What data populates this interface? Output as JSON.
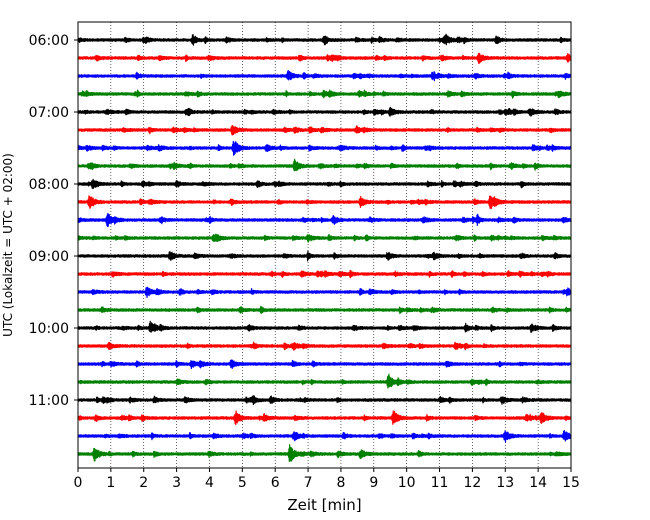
{
  "chart_data": {
    "type": "line",
    "title": "",
    "xlabel": "Zeit  [min]",
    "ylabel": "UTC (Lokalzeit = UTC + 02:00)",
    "xlim": [
      0,
      15
    ],
    "x_ticks": [
      "0",
      "1",
      "2",
      "3",
      "4",
      "5",
      "6",
      "7",
      "8",
      "9",
      "10",
      "11",
      "12",
      "13",
      "14",
      "15"
    ],
    "y_ticks": [
      "06:00",
      "07:00",
      "08:00",
      "09:00",
      "10:00",
      "11:00"
    ],
    "trace_count": 24,
    "trace_interval_minutes": 15,
    "first_trace": "06:00",
    "trace_colors": [
      "#000000",
      "#ff0000",
      "#0000ff",
      "#008000"
    ],
    "grid": "vertical dotted at each minute",
    "events": [
      {
        "trace": 0,
        "x": 3.5,
        "amp": 0.5
      },
      {
        "trace": 0,
        "x": 11.2,
        "amp": 0.45
      },
      {
        "trace": 1,
        "x": 12.2,
        "amp": 0.5
      },
      {
        "trace": 1,
        "x": 14.9,
        "amp": 0.4
      },
      {
        "trace": 2,
        "x": 6.4,
        "amp": 0.5
      },
      {
        "trace": 4,
        "x": 9.5,
        "amp": 0.4
      },
      {
        "trace": 5,
        "x": 4.7,
        "amp": 0.5
      },
      {
        "trace": 6,
        "x": 4.75,
        "amp": 0.85
      },
      {
        "trace": 7,
        "x": 6.6,
        "amp": 0.65
      },
      {
        "trace": 8,
        "x": 0.45,
        "amp": 0.5
      },
      {
        "trace": 9,
        "x": 0.35,
        "amp": 0.75
      },
      {
        "trace": 9,
        "x": 8.6,
        "amp": 0.5
      },
      {
        "trace": 9,
        "x": 12.55,
        "amp": 0.75
      },
      {
        "trace": 10,
        "x": 0.9,
        "amp": 0.75
      },
      {
        "trace": 11,
        "x": 7.0,
        "amp": 0.35
      },
      {
        "trace": 12,
        "x": 2.8,
        "amp": 0.45
      },
      {
        "trace": 14,
        "x": 2.1,
        "amp": 0.45
      },
      {
        "trace": 14,
        "x": 14.9,
        "amp": 0.4
      },
      {
        "trace": 16,
        "x": 2.2,
        "amp": 0.35
      },
      {
        "trace": 16,
        "x": 13.8,
        "amp": 0.45
      },
      {
        "trace": 17,
        "x": 11.5,
        "amp": 0.4
      },
      {
        "trace": 18,
        "x": 3.45,
        "amp": 0.4
      },
      {
        "trace": 19,
        "x": 9.45,
        "amp": 0.85
      },
      {
        "trace": 20,
        "x": 12.9,
        "amp": 0.35
      },
      {
        "trace": 21,
        "x": 4.8,
        "amp": 0.7
      },
      {
        "trace": 21,
        "x": 9.6,
        "amp": 0.75
      },
      {
        "trace": 21,
        "x": 14.1,
        "amp": 0.65
      },
      {
        "trace": 22,
        "x": 13.0,
        "amp": 0.6
      },
      {
        "trace": 22,
        "x": 14.8,
        "amp": 0.6
      },
      {
        "trace": 23,
        "x": 0.5,
        "amp": 0.6
      },
      {
        "trace": 23,
        "x": 6.45,
        "amp": 0.95
      },
      {
        "trace": 23,
        "x": 8.6,
        "amp": 0.45
      }
    ]
  }
}
